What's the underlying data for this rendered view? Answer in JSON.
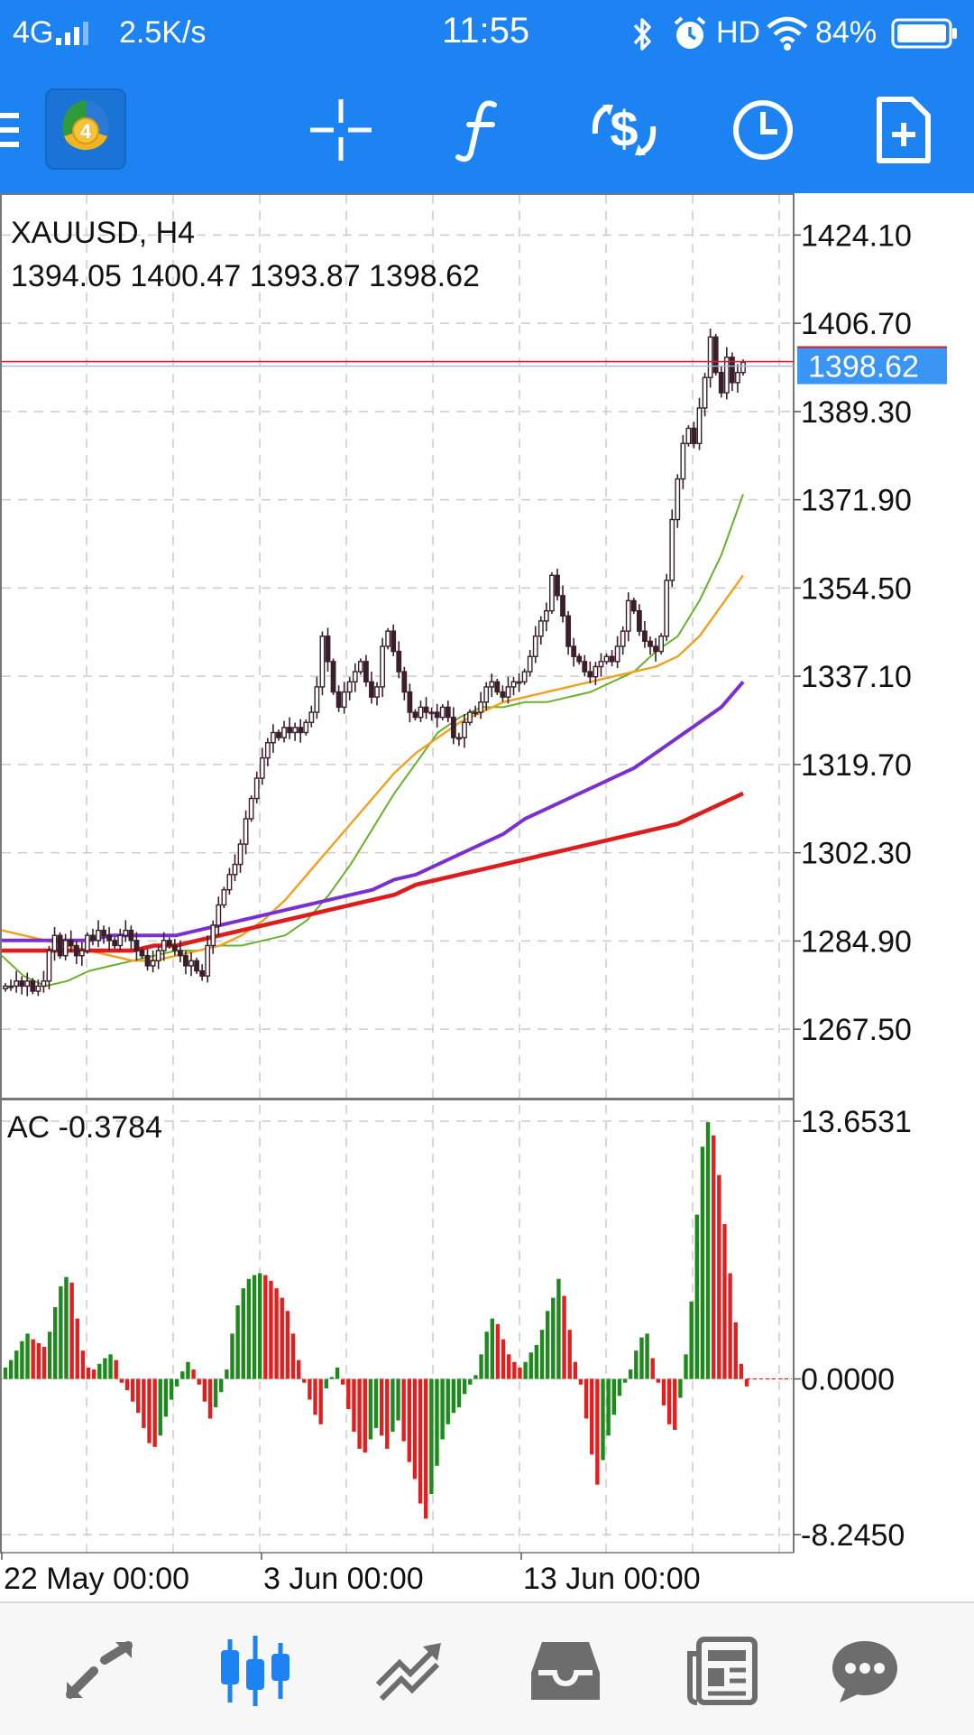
{
  "status_bar": {
    "network": "4G",
    "speed": "2.5K/s",
    "time": "11:55",
    "hd": "HD",
    "battery": "84%"
  },
  "toolbar": {
    "app_icon": "metatrader-logo-icon",
    "logo_badge": "4",
    "icons": [
      "menu-icon",
      "crosshair-icon",
      "indicators-icon",
      "trade-icon",
      "timeframe-clock-icon",
      "new-order-icon"
    ]
  },
  "chart": {
    "symbol_label": "XAUUSD, H4",
    "ohlc_label": "1394.05 1400.47 1393.87 1398.62",
    "current_price": "1398.62",
    "oscillator_label": "AC -0.3784"
  },
  "chart_data": {
    "type": "candlestick",
    "title": "XAUUSD, H4",
    "ohlc": {
      "open": 1394.05,
      "high": 1400.47,
      "low": 1393.87,
      "close": 1398.62
    },
    "price_ticks": [
      "1424.10",
      "1406.70",
      "1389.30",
      "1371.90",
      "1354.50",
      "1337.10",
      "1319.70",
      "1302.30",
      "1284.90",
      "1267.50"
    ],
    "price_range": [
      1254.0,
      1432.0
    ],
    "time_labels": [
      "22 May 00:00",
      "3 Jun 00:00",
      "13 Jun 00:00"
    ],
    "grid": true,
    "current_price": 1398.62,
    "closes": [
      1276,
      1276,
      1277,
      1276,
      1277,
      1275,
      1276,
      1277,
      1283,
      1286,
      1282,
      1285,
      1284,
      1282,
      1283,
      1286,
      1285,
      1287,
      1286,
      1285,
      1284,
      1286,
      1287,
      1285,
      1283,
      1282,
      1280,
      1281,
      1283,
      1285,
      1284,
      1283,
      1282,
      1280,
      1281,
      1279,
      1278,
      1284,
      1288,
      1292,
      1295,
      1298,
      1300,
      1304,
      1309,
      1313,
      1317,
      1321,
      1324,
      1326,
      1325,
      1327,
      1326,
      1327,
      1326,
      1328,
      1330,
      1335,
      1345,
      1340,
      1334,
      1331,
      1334,
      1336,
      1338,
      1340,
      1336,
      1333,
      1335,
      1343,
      1346,
      1342,
      1338,
      1334,
      1330,
      1329,
      1331,
      1330,
      1330,
      1329,
      1331,
      1329,
      1325,
      1325,
      1328,
      1330,
      1330,
      1332,
      1335,
      1336,
      1334,
      1333,
      1335,
      1336,
      1336,
      1338,
      1341,
      1345,
      1348,
      1350,
      1357,
      1353,
      1349,
      1343,
      1341,
      1340,
      1338,
      1337,
      1339,
      1340,
      1341,
      1340,
      1343,
      1346,
      1352,
      1350,
      1346,
      1344,
      1343,
      1342,
      1345,
      1356,
      1368,
      1376,
      1383,
      1386,
      1383,
      1390,
      1396,
      1404,
      1397,
      1393,
      1400,
      1395,
      1397,
      1399
    ],
    "indicators": [
      {
        "name": "MA-fast",
        "color": "#6ab02c",
        "values": [
          1282,
          1278,
          1276,
          1277,
          1279,
          1280,
          1281,
          1282,
          1283,
          1283,
          1284,
          1284,
          1285,
          1286,
          1289,
          1294,
          1300,
          1307,
          1314,
          1320,
          1326,
          1329,
          1331,
          1331,
          1332,
          1332,
          1333,
          1334,
          1336,
          1338,
          1342,
          1345,
          1352,
          1361,
          1373
        ]
      },
      {
        "name": "MA-medium",
        "color": "#f0a020",
        "values": [
          1287,
          1286,
          1285,
          1284,
          1283,
          1282,
          1281,
          1281,
          1282,
          1283,
          1284,
          1286,
          1289,
          1293,
          1298,
          1303,
          1308,
          1313,
          1318,
          1322,
          1325,
          1328,
          1330,
          1332,
          1333,
          1334,
          1335,
          1336,
          1337,
          1338,
          1339,
          1341,
          1345,
          1351,
          1357
        ]
      },
      {
        "name": "MA-slow",
        "color": "#7a30d0",
        "values": [
          1285,
          1285,
          1285,
          1285,
          1285,
          1286,
          1286,
          1286,
          1286,
          1287,
          1288,
          1289,
          1290,
          1291,
          1292,
          1293,
          1294,
          1295,
          1297,
          1298,
          1300,
          1302,
          1304,
          1306,
          1309,
          1311,
          1313,
          1315,
          1317,
          1319,
          1322,
          1325,
          1328,
          1331,
          1336
        ]
      },
      {
        "name": "MA-long",
        "color": "#dd1c1c",
        "values": [
          1283,
          1283,
          1283,
          1283,
          1283,
          1283,
          1283,
          1284,
          1284,
          1285,
          1286,
          1287,
          1288,
          1289,
          1290,
          1291,
          1292,
          1293,
          1294,
          1296,
          1297,
          1298,
          1299,
          1300,
          1301,
          1302,
          1303,
          1304,
          1305,
          1306,
          1307,
          1308,
          1310,
          1312,
          1314
        ]
      }
    ],
    "oscillator": {
      "name": "AC",
      "value": -0.3784,
      "ticks": [
        "13.6531",
        "0.0000",
        "-8.2450"
      ],
      "range": [
        -8.245,
        13.6531
      ],
      "up_color": "#1e8a1e",
      "down_color": "#e02020",
      "values": [
        0.6,
        1.0,
        1.5,
        2.0,
        2.4,
        2.1,
        1.9,
        1.7,
        2.5,
        3.8,
        4.9,
        5.4,
        5.1,
        3.2,
        1.5,
        0.6,
        0.5,
        0.8,
        1.1,
        1.3,
        1.0,
        -0.2,
        -0.6,
        -1.2,
        -1.8,
        -2.6,
        -3.4,
        -3.6,
        -3.0,
        -2.0,
        -1.1,
        -0.4,
        0.4,
        0.9,
        0.5,
        -0.3,
        -1.2,
        -2.1,
        -1.5,
        -0.7,
        0.5,
        2.4,
        3.9,
        4.8,
        5.3,
        5.5,
        5.6,
        5.5,
        5.2,
        4.8,
        4.3,
        3.6,
        2.4,
        1.0,
        -0.2,
        -1.1,
        -1.9,
        -2.4,
        -0.5,
        0.1,
        0.6,
        -0.3,
        -1.6,
        -2.8,
        -3.7,
        -3.9,
        -3.2,
        -2.6,
        -3.0,
        -3.7,
        -2.8,
        -2.2,
        -3.3,
        -4.4,
        -5.3,
        -6.6,
        -7.4,
        -6.1,
        -4.6,
        -3.2,
        -2.4,
        -1.8,
        -1.5,
        -0.8,
        -0.3,
        0.2,
        1.3,
        2.5,
        3.2,
        2.9,
        2.1,
        1.3,
        0.9,
        0.6,
        0.9,
        1.4,
        1.8,
        2.6,
        3.6,
        4.3,
        5.3,
        4.4,
        2.6,
        0.9,
        -0.3,
        -2.1,
        -4.0,
        -5.6,
        -4.3,
        -3.0,
        -1.9,
        -0.9,
        -0.2,
        0.5,
        1.5,
        2.2,
        2.4,
        1.1,
        -0.2,
        -1.4,
        -2.4,
        -2.7,
        -1.0,
        1.3,
        4.1,
        8.7,
        12.3,
        13.6,
        12.9,
        10.8,
        8.2,
        5.6,
        3.0,
        0.8,
        -0.4
      ]
    }
  },
  "bottom_nav": {
    "items": [
      "quotes-icon",
      "chart-icon",
      "trade-icon",
      "history-icon",
      "news-icon",
      "chat-icon"
    ],
    "active_index": 1
  },
  "colors": {
    "primary": "#1e83f2",
    "active_nav": "#1e83f2",
    "inactive_nav": "#6d6d6d",
    "price_line": "#dd1c1c",
    "price_badge": "#3b95f5"
  }
}
